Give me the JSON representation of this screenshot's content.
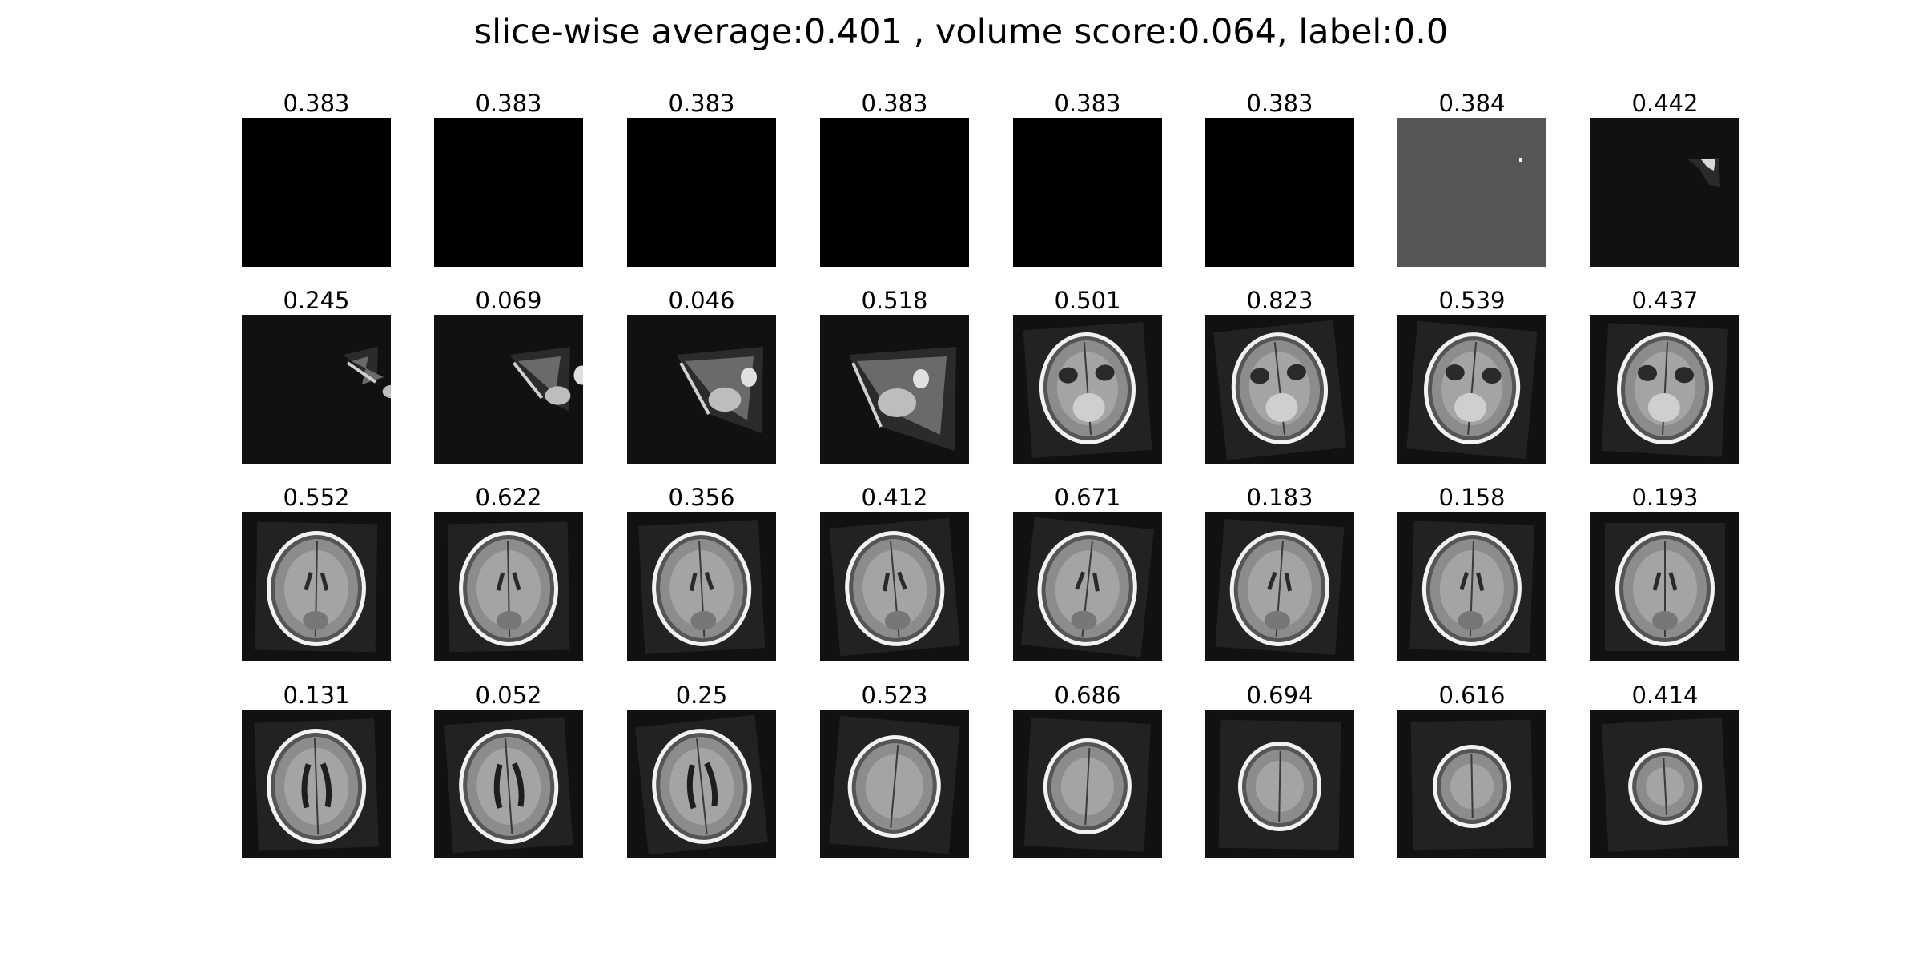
{
  "figure": {
    "title": "slice-wise average:0.401 , volume score:0.064, label:0.0"
  },
  "slices": [
    {
      "score": "0.383",
      "kind": "blank"
    },
    {
      "score": "0.383",
      "kind": "blank"
    },
    {
      "score": "0.383",
      "kind": "blank"
    },
    {
      "score": "0.383",
      "kind": "blank"
    },
    {
      "score": "0.383",
      "kind": "blank"
    },
    {
      "score": "0.383",
      "kind": "blank"
    },
    {
      "score": "0.384",
      "kind": "gray-field"
    },
    {
      "score": "0.442",
      "kind": "edge-fragment"
    },
    {
      "score": "0.245",
      "kind": "wedge"
    },
    {
      "score": "0.069",
      "kind": "wedge"
    },
    {
      "score": "0.046",
      "kind": "wedge"
    },
    {
      "score": "0.518",
      "kind": "wedge"
    },
    {
      "score": "0.501",
      "kind": "brain-base"
    },
    {
      "score": "0.823",
      "kind": "brain-base"
    },
    {
      "score": "0.539",
      "kind": "brain-base"
    },
    {
      "score": "0.437",
      "kind": "brain-base"
    },
    {
      "score": "0.552",
      "kind": "brain-mid"
    },
    {
      "score": "0.622",
      "kind": "brain-mid"
    },
    {
      "score": "0.356",
      "kind": "brain-mid"
    },
    {
      "score": "0.412",
      "kind": "brain-mid"
    },
    {
      "score": "0.671",
      "kind": "brain-mid"
    },
    {
      "score": "0.183",
      "kind": "brain-mid"
    },
    {
      "score": "0.158",
      "kind": "brain-mid"
    },
    {
      "score": "0.193",
      "kind": "brain-mid"
    },
    {
      "score": "0.131",
      "kind": "brain-ventricle"
    },
    {
      "score": "0.052",
      "kind": "brain-ventricle"
    },
    {
      "score": "0.25",
      "kind": "brain-ventricle"
    },
    {
      "score": "0.523",
      "kind": "brain-top"
    },
    {
      "score": "0.686",
      "kind": "brain-top"
    },
    {
      "score": "0.694",
      "kind": "brain-top"
    },
    {
      "score": "0.616",
      "kind": "brain-top"
    },
    {
      "score": "0.414",
      "kind": "brain-top"
    }
  ]
}
